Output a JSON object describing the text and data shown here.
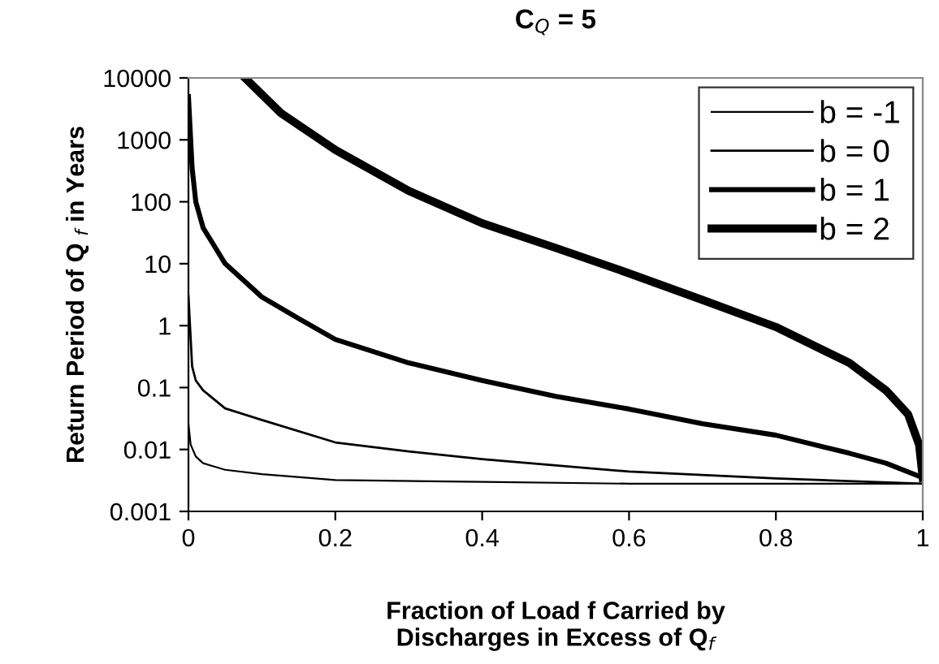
{
  "chart_data": {
    "type": "line",
    "title": "C$_{Q}$ = 5",
    "xlabel": "Fraction of Load f Carried by\nDischarges in Excess of Q$_{f}$",
    "ylabel": "Return Period of Q $_{f}$ in Years",
    "log": "y",
    "xlim": [
      0,
      1
    ],
    "xticks": [
      0,
      0.2,
      0.4,
      0.6,
      0.8,
      1
    ],
    "ylim": [
      0.001,
      10000
    ],
    "yticks": [
      0.001,
      0.01,
      0.1,
      1,
      10,
      100,
      1000,
      10000
    ],
    "grid": false,
    "legend": "top right",
    "marker": "none",
    "line_style": "solid",
    "series": [
      {
        "name": "b = -1",
        "color": "#000000",
        "x": [
          0,
          0.003,
          0.01,
          0.02,
          0.05,
          0.1,
          0.2,
          0.4,
          0.6,
          0.8,
          1
        ],
        "values": [
          0.026,
          0.012,
          0.0077,
          0.006,
          0.0047,
          0.004,
          0.0032,
          0.003,
          0.0028,
          0.0028,
          0.0028
        ]
      },
      {
        "name": "b = 0",
        "color": "#000000",
        "x": [
          0,
          0.005,
          0.01,
          0.02,
          0.05,
          0.1,
          0.2,
          0.3,
          0.4,
          0.6,
          0.8,
          1
        ],
        "values": [
          3,
          0.22,
          0.13,
          0.09,
          0.046,
          0.03,
          0.013,
          0.0093,
          0.007,
          0.0044,
          0.0034,
          0.0028
        ]
      },
      {
        "name": "b = 1",
        "color": "#000000",
        "x": [
          0,
          0.005,
          0.01,
          0.02,
          0.05,
          0.1,
          0.15,
          0.2,
          0.3,
          0.4,
          0.5,
          0.6,
          0.7,
          0.8,
          0.9,
          0.95,
          1
        ],
        "values": [
          5000,
          350,
          100,
          38,
          10,
          2.9,
          1.3,
          0.6,
          0.25,
          0.13,
          0.072,
          0.045,
          0.026,
          0.017,
          0.0087,
          0.006,
          0.0035
        ]
      },
      {
        "name": "b = 2",
        "color": "#000000",
        "x": [
          0.077,
          0.126,
          0.2,
          0.3,
          0.4,
          0.5,
          0.6,
          0.7,
          0.8,
          0.9,
          0.95,
          0.98,
          0.995,
          1
        ],
        "values": [
          10000,
          2700,
          690,
          150,
          45,
          18,
          7,
          2.6,
          0.95,
          0.25,
          0.09,
          0.037,
          0.012,
          0.0035
        ]
      }
    ]
  }
}
